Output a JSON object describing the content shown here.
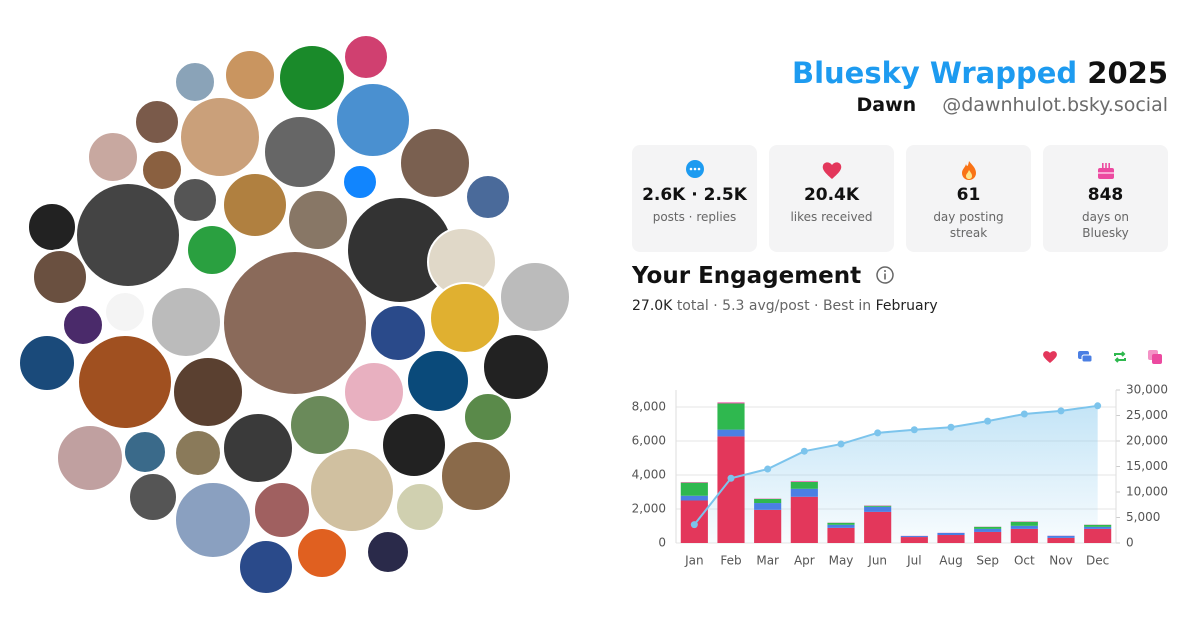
{
  "header": {
    "title": "Bluesky Wrapped",
    "year": "2025",
    "name": "Dawn",
    "handle": "@dawnhulot.bsky.social"
  },
  "stats": [
    {
      "value": "2.6K · 2.5K",
      "label": "posts · replies"
    },
    {
      "value": "20.4K",
      "label": "likes received"
    },
    {
      "value": "61",
      "label": "day posting streak"
    },
    {
      "value": "848",
      "label": "days on Bluesky"
    }
  ],
  "engagement": {
    "title": "Your Engagement",
    "total": "27.0K",
    "details": "total · 5.3 avg/post · Best in",
    "best": "February"
  },
  "chart_data": {
    "type": "stacked-bar-line",
    "categories": [
      "Jan",
      "Feb",
      "Mar",
      "Apr",
      "May",
      "Jun",
      "Jul",
      "Aug",
      "Sep",
      "Oct",
      "Nov",
      "Dec"
    ],
    "series": [
      {
        "color": "#e3375b",
        "values": [
          2500,
          6270,
          1950,
          2720,
          890,
          1830,
          350,
          470,
          650,
          830,
          300,
          830
        ]
      },
      {
        "color": "#4b7fe3",
        "values": [
          280,
          400,
          400,
          470,
          180,
          300,
          60,
          120,
          180,
          180,
          120,
          120
        ]
      },
      {
        "color": "#2fb84f",
        "values": [
          770,
          1540,
          240,
          400,
          120,
          60,
          0,
          0,
          120,
          240,
          0,
          120
        ]
      },
      {
        "color": "#ec4aa0",
        "values": [
          30,
          60,
          20,
          40,
          10,
          20,
          10,
          10,
          10,
          20,
          10,
          10
        ]
      },
      {
        "color": "#7cc4ec",
        "axis": "y2",
        "values": [
          3600,
          12700,
          14500,
          18000,
          19400,
          21600,
          22200,
          22700,
          23900,
          25300,
          25900,
          26900
        ]
      }
    ],
    "ylim": [
      0,
      9000
    ],
    "yticks": [
      0,
      {
        "value": 2000,
        "label": "2,000"
      },
      {
        "value": 4000,
        "label": "4,000"
      },
      {
        "value": 6000,
        "label": "6,000"
      },
      {
        "value": 8000,
        "label": "8,000"
      }
    ],
    "y2lim": [
      0,
      30000
    ],
    "y2ticks": [
      0,
      {
        "value": 5000,
        "label": "5,000"
      },
      {
        "value": 10000,
        "label": "10,000"
      },
      {
        "value": 15000,
        "label": "15,000"
      },
      {
        "value": 20000,
        "label": "20,000"
      },
      {
        "value": 25000,
        "label": "25,000"
      },
      {
        "value": 30000,
        "label": "30,000"
      }
    ],
    "grid": true
  }
}
